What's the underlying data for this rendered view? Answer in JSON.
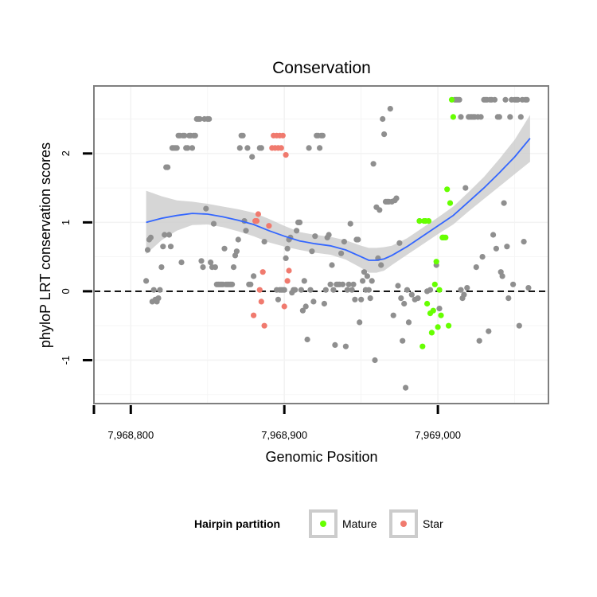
{
  "chart_data": {
    "type": "scatter",
    "title": "Conservation",
    "xlabel": "Genomic Position",
    "ylabel": "phyloP LRT conservation scores",
    "xlim": [
      7968776,
      7969072
    ],
    "ylim": [
      -1.63,
      2.98
    ],
    "x_ticks": [
      7968800,
      7968900,
      7969000
    ],
    "x_tick_labels": [
      "7,968,800",
      "7,968,900",
      "7,969,000"
    ],
    "y_ticks": [
      -1,
      0,
      1,
      2
    ],
    "y_tick_labels": [
      "-1",
      "0",
      "1",
      "2"
    ],
    "grid": true,
    "reference_line": {
      "y": 0,
      "style": "dashed"
    },
    "colors": {
      "other": "#8f8f8f",
      "mature": "#66ff00",
      "star": "#f07a6e",
      "smooth": "#3366ff",
      "ribbon": "#cccccc",
      "panel_border": "#7f7f7f",
      "grid": "#f3f3f3"
    },
    "legend": {
      "title": "Hairpin partition",
      "position": "bottom",
      "entries": [
        {
          "label": "Mature",
          "color": "#66ff00"
        },
        {
          "label": "Star",
          "color": "#f07a6e"
        }
      ]
    },
    "series": [
      {
        "name": "",
        "group": "other",
        "points": [
          [
            7968810,
            0.15
          ],
          [
            7968811,
            0.6
          ],
          [
            7968812,
            0.75
          ],
          [
            7968813,
            0.78
          ],
          [
            7968814,
            -0.15
          ],
          [
            7968815,
            0.02
          ],
          [
            7968816,
            -0.12
          ],
          [
            7968817,
            -0.15
          ],
          [
            7968818,
            -0.1
          ],
          [
            7968819,
            0.02
          ],
          [
            7968820,
            0.35
          ],
          [
            7968821,
            0.65
          ],
          [
            7968822,
            0.82
          ],
          [
            7968823,
            1.8
          ],
          [
            7968824,
            1.8
          ],
          [
            7968825,
            0.82
          ],
          [
            7968826,
            0.65
          ],
          [
            7968827,
            2.08
          ],
          [
            7968828,
            2.08
          ],
          [
            7968829,
            2.08
          ],
          [
            7968830,
            2.08
          ],
          [
            7968831,
            2.26
          ],
          [
            7968832,
            2.26
          ],
          [
            7968833,
            0.42
          ],
          [
            7968834,
            2.26
          ],
          [
            7968835,
            2.26
          ],
          [
            7968836,
            2.08
          ],
          [
            7968837,
            2.08
          ],
          [
            7968838,
            2.26
          ],
          [
            7968839,
            2.26
          ],
          [
            7968840,
            2.08
          ],
          [
            7968841,
            2.26
          ],
          [
            7968842,
            2.26
          ],
          [
            7968843,
            2.5
          ],
          [
            7968844,
            2.5
          ],
          [
            7968845,
            2.5
          ],
          [
            7968846,
            0.44
          ],
          [
            7968847,
            0.35
          ],
          [
            7968848,
            2.5
          ],
          [
            7968849,
            1.2
          ],
          [
            7968850,
            2.5
          ],
          [
            7968851,
            2.5
          ],
          [
            7968852,
            0.42
          ],
          [
            7968853,
            0.35
          ],
          [
            7968854,
            0.98
          ],
          [
            7968855,
            0.35
          ],
          [
            7968856,
            0.1
          ],
          [
            7968857,
            0.1
          ],
          [
            7968858,
            0.1
          ],
          [
            7968859,
            0.1
          ],
          [
            7968860,
            0.1
          ],
          [
            7968861,
            0.62
          ],
          [
            7968862,
            0.1
          ],
          [
            7968863,
            0.1
          ],
          [
            7968864,
            0.1
          ],
          [
            7968865,
            0.1
          ],
          [
            7968866,
            0.1
          ],
          [
            7968867,
            0.35
          ],
          [
            7968868,
            0.52
          ],
          [
            7968869,
            0.58
          ],
          [
            7968870,
            0.75
          ],
          [
            7968871,
            2.08
          ],
          [
            7968872,
            2.26
          ],
          [
            7968873,
            2.26
          ],
          [
            7968874,
            1.02
          ],
          [
            7968875,
            0.88
          ],
          [
            7968876,
            2.08
          ],
          [
            7968877,
            0.1
          ],
          [
            7968878,
            0.1
          ],
          [
            7968879,
            1.95
          ],
          [
            7968880,
            0.22
          ],
          [
            7968884,
            2.08
          ],
          [
            7968885,
            2.08
          ],
          [
            7968887,
            0.72
          ],
          [
            7968895,
            0.02
          ],
          [
            7968896,
            -0.12
          ],
          [
            7968897,
            0.02
          ],
          [
            7968898,
            0.02
          ],
          [
            7968899,
            0.02
          ],
          [
            7968900,
            0.02
          ],
          [
            7968901,
            0.48
          ],
          [
            7968902,
            0.62
          ],
          [
            7968903,
            0.75
          ],
          [
            7968904,
            0.78
          ],
          [
            7968905,
            -0.02
          ],
          [
            7968906,
            0.02
          ],
          [
            7968907,
            0.02
          ],
          [
            7968908,
            0.88
          ],
          [
            7968909,
            1.0
          ],
          [
            7968910,
            1.0
          ],
          [
            7968911,
            0.02
          ],
          [
            7968912,
            -0.28
          ],
          [
            7968913,
            0.15
          ],
          [
            7968914,
            -0.22
          ],
          [
            7968915,
            -0.7
          ],
          [
            7968916,
            2.08
          ],
          [
            7968917,
            0.02
          ],
          [
            7968918,
            0.58
          ],
          [
            7968919,
            -0.15
          ],
          [
            7968920,
            0.8
          ],
          [
            7968921,
            2.26
          ],
          [
            7968922,
            2.26
          ],
          [
            7968923,
            2.08
          ],
          [
            7968924,
            2.26
          ],
          [
            7968925,
            2.26
          ],
          [
            7968926,
            -0.18
          ],
          [
            7968927,
            0.02
          ],
          [
            7968928,
            0.78
          ],
          [
            7968929,
            0.82
          ],
          [
            7968930,
            0.1
          ],
          [
            7968931,
            0.38
          ],
          [
            7968932,
            0.02
          ],
          [
            7968933,
            -0.78
          ],
          [
            7968934,
            0.1
          ],
          [
            7968935,
            0.1
          ],
          [
            7968936,
            0.1
          ],
          [
            7968937,
            0.55
          ],
          [
            7968938,
            0.1
          ],
          [
            7968939,
            0.72
          ],
          [
            7968940,
            -0.8
          ],
          [
            7968941,
            0.02
          ],
          [
            7968942,
            0.1
          ],
          [
            7968943,
            0.98
          ],
          [
            7968944,
            0.02
          ],
          [
            7968945,
            0.1
          ],
          [
            7968946,
            -0.12
          ],
          [
            7968947,
            0.75
          ],
          [
            7968948,
            0.75
          ],
          [
            7968949,
            -0.45
          ],
          [
            7968950,
            -0.12
          ],
          [
            7968951,
            0.15
          ],
          [
            7968952,
            0.28
          ],
          [
            7968953,
            0.02
          ],
          [
            7968954,
            0.22
          ],
          [
            7968955,
            0.02
          ],
          [
            7968956,
            -0.1
          ],
          [
            7968957,
            0.15
          ],
          [
            7968958,
            1.85
          ],
          [
            7968959,
            -1.0
          ],
          [
            7968960,
            1.22
          ],
          [
            7968961,
            0.48
          ],
          [
            7968962,
            1.18
          ],
          [
            7968963,
            0.38
          ],
          [
            7968964,
            2.5
          ],
          [
            7968965,
            2.28
          ],
          [
            7968966,
            1.3
          ],
          [
            7968967,
            1.3
          ],
          [
            7968968,
            1.3
          ],
          [
            7968969,
            2.65
          ],
          [
            7968970,
            1.3
          ],
          [
            7968971,
            -0.35
          ],
          [
            7968972,
            1.32
          ],
          [
            7968973,
            1.35
          ],
          [
            7968974,
            0.08
          ],
          [
            7968975,
            0.7
          ],
          [
            7968976,
            -0.1
          ],
          [
            7968977,
            -0.72
          ],
          [
            7968978,
            -0.18
          ],
          [
            7968979,
            -1.4
          ],
          [
            7968980,
            0.02
          ],
          [
            7968981,
            -0.45
          ],
          [
            7968983,
            -0.05
          ],
          [
            7968985,
            -0.12
          ],
          [
            7968987,
            -0.1
          ],
          [
            7968988,
            1.02
          ],
          [
            7968993,
            0.0
          ],
          [
            7968995,
            0.02
          ],
          [
            7968999,
            0.38
          ],
          [
            7969001,
            -0.25
          ],
          [
            7969003,
            0.78
          ],
          [
            7969011,
            2.78
          ],
          [
            7969012,
            2.78
          ],
          [
            7969013,
            2.78
          ],
          [
            7969014,
            2.78
          ],
          [
            7969015,
            0.02
          ],
          [
            7969015,
            2.53
          ],
          [
            7969016,
            -0.1
          ],
          [
            7969017,
            -0.05
          ],
          [
            7969018,
            1.5
          ],
          [
            7969019,
            0.05
          ],
          [
            7969020,
            2.53
          ],
          [
            7969021,
            2.53
          ],
          [
            7969022,
            2.53
          ],
          [
            7969023,
            2.53
          ],
          [
            7969024,
            2.53
          ],
          [
            7969025,
            0.35
          ],
          [
            7969026,
            2.53
          ],
          [
            7969027,
            -0.72
          ],
          [
            7969028,
            2.53
          ],
          [
            7969029,
            0.5
          ],
          [
            7969030,
            2.78
          ],
          [
            7969031,
            2.78
          ],
          [
            7969032,
            2.78
          ],
          [
            7969033,
            -0.58
          ],
          [
            7969034,
            2.78
          ],
          [
            7969035,
            2.78
          ],
          [
            7969036,
            0.82
          ],
          [
            7969037,
            2.78
          ],
          [
            7969038,
            0.62
          ],
          [
            7969039,
            2.53
          ],
          [
            7969040,
            2.53
          ],
          [
            7969041,
            0.28
          ],
          [
            7969042,
            0.22
          ],
          [
            7969043,
            1.28
          ],
          [
            7969044,
            2.78
          ],
          [
            7969045,
            0.65
          ],
          [
            7969046,
            -0.1
          ],
          [
            7969047,
            2.53
          ],
          [
            7969048,
            2.78
          ],
          [
            7969049,
            0.1
          ],
          [
            7969050,
            2.78
          ],
          [
            7969051,
            2.78
          ],
          [
            7969052,
            2.78
          ],
          [
            7969053,
            -0.5
          ],
          [
            7969054,
            2.53
          ],
          [
            7969055,
            2.78
          ],
          [
            7969056,
            0.72
          ],
          [
            7969057,
            2.78
          ],
          [
            7969058,
            2.78
          ],
          [
            7969059,
            0.05
          ]
        ]
      },
      {
        "name": "Mature",
        "group": "mature",
        "points": [
          [
            7968988,
            1.02
          ],
          [
            7968990,
            -0.8
          ],
          [
            7968991,
            1.02
          ],
          [
            7968992,
            1.02
          ],
          [
            7968993,
            -0.18
          ],
          [
            7968994,
            1.02
          ],
          [
            7968995,
            -0.32
          ],
          [
            7968996,
            -0.6
          ],
          [
            7968997,
            -0.28
          ],
          [
            7968998,
            0.1
          ],
          [
            7968999,
            0.43
          ],
          [
            7969000,
            -0.52
          ],
          [
            7969001,
            0.02
          ],
          [
            7969002,
            -0.35
          ],
          [
            7969003,
            0.78
          ],
          [
            7969004,
            0.78
          ],
          [
            7969005,
            0.78
          ],
          [
            7969006,
            1.48
          ],
          [
            7969007,
            -0.5
          ],
          [
            7969008,
            1.28
          ],
          [
            7969009,
            2.78
          ],
          [
            7969010,
            2.53
          ]
        ]
      },
      {
        "name": "Star",
        "group": "star",
        "points": [
          [
            7968880,
            -0.35
          ],
          [
            7968881,
            1.02
          ],
          [
            7968882,
            1.02
          ],
          [
            7968883,
            1.12
          ],
          [
            7968884,
            0.02
          ],
          [
            7968885,
            -0.15
          ],
          [
            7968886,
            0.28
          ],
          [
            7968887,
            -0.5
          ],
          [
            7968890,
            0.95
          ],
          [
            7968892,
            2.08
          ],
          [
            7968893,
            2.26
          ],
          [
            7968894,
            2.08
          ],
          [
            7968895,
            2.26
          ],
          [
            7968896,
            2.08
          ],
          [
            7968897,
            2.26
          ],
          [
            7968898,
            2.08
          ],
          [
            7968899,
            2.26
          ],
          [
            7968900,
            -0.22
          ],
          [
            7968901,
            1.98
          ],
          [
            7968902,
            0.15
          ],
          [
            7968903,
            0.3
          ]
        ]
      }
    ],
    "smooth": {
      "method": "loess",
      "x": [
        7968810,
        7968820,
        7968830,
        7968840,
        7968850,
        7968860,
        7968870,
        7968880,
        7968890,
        7968900,
        7968910,
        7968920,
        7968930,
        7968940,
        7968950,
        7968955,
        7968960,
        7968965,
        7968970,
        7968980,
        7968990,
        7969000,
        7969010,
        7969020,
        7969030,
        7969040,
        7969050,
        7969060
      ],
      "y": [
        1.0,
        1.06,
        1.1,
        1.13,
        1.12,
        1.08,
        1.03,
        0.97,
        0.88,
        0.8,
        0.73,
        0.69,
        0.66,
        0.6,
        0.5,
        0.45,
        0.45,
        0.47,
        0.52,
        0.65,
        0.8,
        0.95,
        1.1,
        1.3,
        1.5,
        1.72,
        1.95,
        2.22
      ],
      "ci_half_width": [
        0.46,
        0.32,
        0.22,
        0.17,
        0.15,
        0.15,
        0.16,
        0.17,
        0.17,
        0.15,
        0.13,
        0.13,
        0.13,
        0.14,
        0.16,
        0.18,
        0.18,
        0.17,
        0.14,
        0.12,
        0.12,
        0.12,
        0.13,
        0.14,
        0.16,
        0.2,
        0.25,
        0.34
      ]
    }
  }
}
